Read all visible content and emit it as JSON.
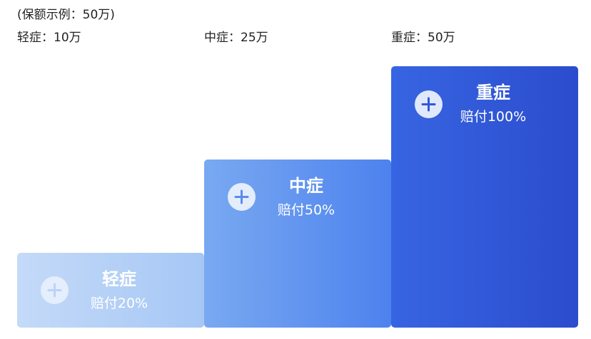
{
  "caption": "(保额示例：50万)",
  "tiers": [
    {
      "amount_label": "轻症：10万",
      "name": "轻症",
      "payout": "赔付20%",
      "icon": "plus-icon",
      "icon_color": "#bcd3f5"
    },
    {
      "amount_label": "中症：25万",
      "name": "中症",
      "payout": "赔付50%",
      "icon": "plus-icon",
      "icon_color": "#5a8cec"
    },
    {
      "amount_label": "重症：50万",
      "name": "重症",
      "payout": "赔付100%",
      "icon": "plus-icon",
      "icon_color": "#3258d6"
    }
  ]
}
